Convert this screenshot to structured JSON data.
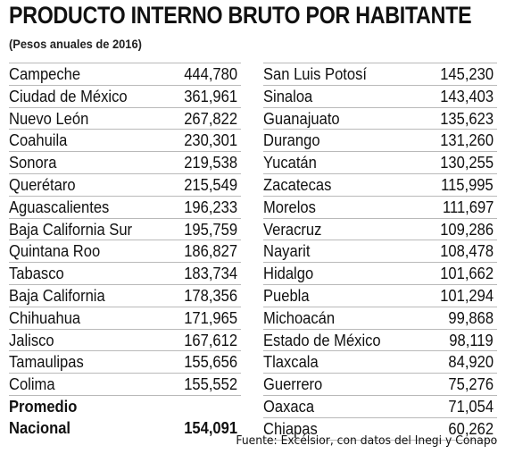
{
  "title": "PRODUCTO INTERNO BRUTO POR HABITANTE",
  "subtitle": "(Pesos anuales de 2016)",
  "left_rows": [
    {
      "state": "Campeche",
      "value": "444,780"
    },
    {
      "state": "Ciudad de México",
      "value": "361,961"
    },
    {
      "state": "Nuevo León",
      "value": "267,822"
    },
    {
      "state": "Coahuila",
      "value": "230,301"
    },
    {
      "state": "Sonora",
      "value": "219,538"
    },
    {
      "state": "Querétaro",
      "value": "215,549"
    },
    {
      "state": "Aguascalientes",
      "value": "196,233"
    },
    {
      "state": "Baja California Sur",
      "value": "195,759"
    },
    {
      "state": "Quintana Roo",
      "value": "186,827"
    },
    {
      "state": "Tabasco",
      "value": "183,734"
    },
    {
      "state": "Baja California",
      "value": "178,356"
    },
    {
      "state": "Chihuahua",
      "value": "171,965"
    },
    {
      "state": "Jalisco",
      "value": "167,612"
    },
    {
      "state": "Tamaulipas",
      "value": "155,656"
    },
    {
      "state": "Colima",
      "value": "155,552"
    }
  ],
  "right_rows": [
    {
      "state": "San Luis Potosí",
      "value": "145,230"
    },
    {
      "state": "Sinaloa",
      "value": "143,403"
    },
    {
      "state": "Guanajuato",
      "value": "135,623"
    },
    {
      "state": "Durango",
      "value": "131,260"
    },
    {
      "state": "Yucatán",
      "value": "130,255"
    },
    {
      "state": "Zacatecas",
      "value": "115,995"
    },
    {
      "state": "Morelos",
      "value": "111,697"
    },
    {
      "state": "Veracruz",
      "value": "109,286"
    },
    {
      "state": "Nayarit",
      "value": "108,478"
    },
    {
      "state": "Hidalgo",
      "value": "101,662"
    },
    {
      "state": "Puebla",
      "value": "101,294"
    },
    {
      "state": "Michoacán",
      "value": "99,868"
    },
    {
      "state": "Estado de México",
      "value": "98,119"
    },
    {
      "state": "Tlaxcala",
      "value": "84,920"
    },
    {
      "state": "Guerrero",
      "value": "75,276"
    },
    {
      "state": "Oaxaca",
      "value": "71,054"
    },
    {
      "state": "Chiapas",
      "value": "60,262"
    }
  ],
  "average": {
    "line1": "Promedio",
    "line2": "Nacional",
    "value": "154,091"
  },
  "source": "Fuente: Excélsior, con datos del Inegi y Conapo"
}
